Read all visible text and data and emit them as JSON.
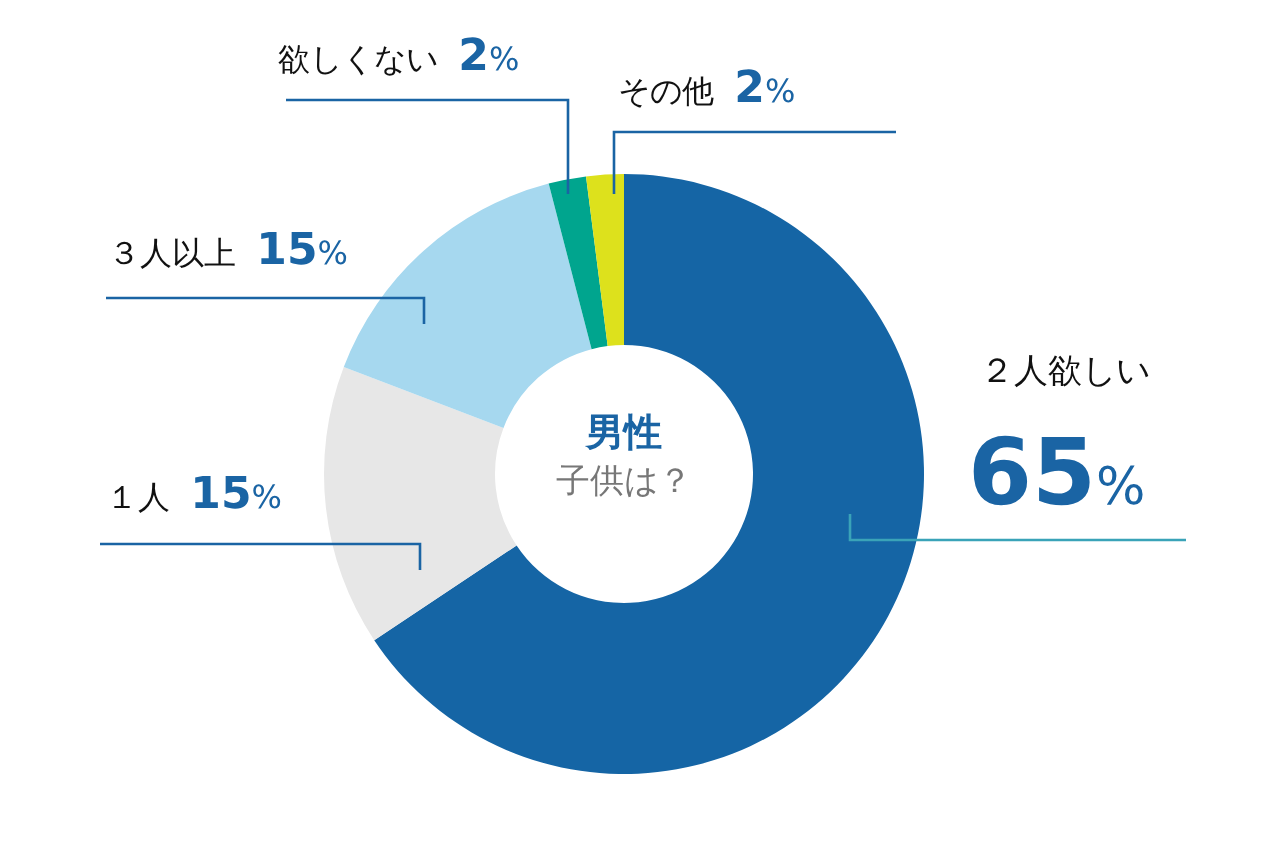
{
  "chart_data": {
    "type": "donut",
    "title": "男性",
    "subtitle": "子供は？",
    "categories": [
      "２人欲しい",
      "１人",
      "３人以上",
      "欲しくない",
      "その他"
    ],
    "values": [
      65,
      15,
      15,
      2,
      2
    ],
    "value_labels": [
      "65%",
      "15%",
      "15%",
      "2%",
      "2%"
    ],
    "colors": [
      "#1565a5",
      "#e7e7e7",
      "#a6d8ef",
      "#00a58e",
      "#dde11c"
    ]
  }
}
